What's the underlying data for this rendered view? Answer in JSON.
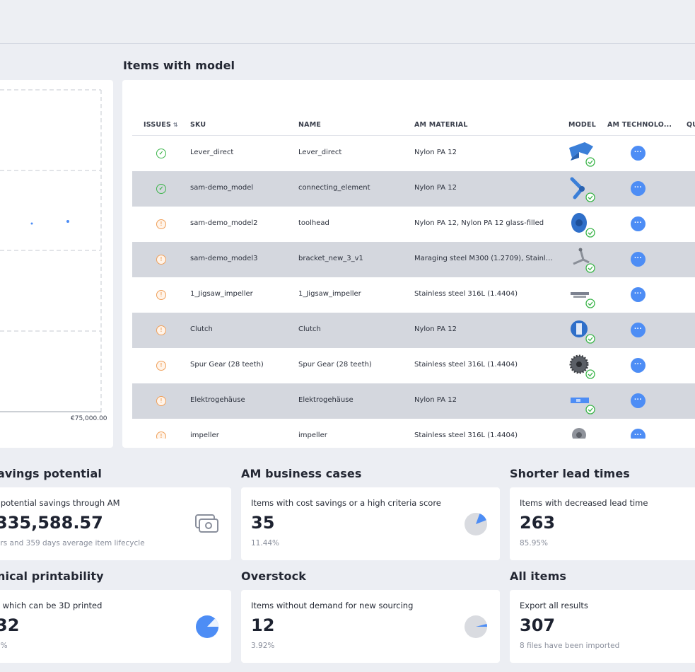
{
  "chart": {
    "x_tick_label": "€75,000.00"
  },
  "items_with_model": {
    "title": "Items with model",
    "columns": {
      "issues": "ISSUES",
      "sku": "SKU",
      "name": "NAME",
      "am_material": "AM MATERIAL",
      "model": "MODEL",
      "am_technology": "AM TECHNOLO...",
      "qu": "QU"
    },
    "rows": [
      {
        "status": "ok",
        "sku": "Lever_direct",
        "name": "Lever_direct",
        "material": "Nylon PA 12"
      },
      {
        "status": "ok",
        "sku": "sam-demo_model",
        "name": "connecting_element",
        "material": "Nylon PA 12"
      },
      {
        "status": "warn",
        "sku": "sam-demo_model2",
        "name": "toolhead",
        "material": "Nylon PA 12, Nylon PA 12 glass-filled"
      },
      {
        "status": "warn",
        "sku": "sam-demo_model3",
        "name": "bracket_new_3_v1",
        "material": "Maraging steel M300 (1.2709), Stainless..."
      },
      {
        "status": "warn",
        "sku": "1_Jigsaw_impeller",
        "name": "1_Jigsaw_impeller",
        "material": "Stainless steel 316L (1.4404)"
      },
      {
        "status": "warn",
        "sku": "Clutch",
        "name": "Clutch",
        "material": "Nylon PA 12"
      },
      {
        "status": "warn",
        "sku": "Spur Gear (28 teeth)",
        "name": "Spur Gear (28 teeth)",
        "material": "Stainless steel 316L (1.4404)"
      },
      {
        "status": "warn",
        "sku": "Elektrogehäuse",
        "name": "Elektrogehäuse",
        "material": "Nylon PA 12"
      },
      {
        "status": "warn",
        "sku": "impeller",
        "name": "impeller",
        "material": "Stainless steel 316L (1.4404)"
      }
    ],
    "more_glyph": "···",
    "ok_glyph": "✓",
    "warn_glyph": "!"
  },
  "savings": {
    "title": "avings potential",
    "label": "l potential savings through AM",
    "value": "335,588.57",
    "sub": "ars and 359 days average item lifecycle"
  },
  "business_cases": {
    "title": "AM business cases",
    "label": "Items with cost savings or a high criteria score",
    "value": "35",
    "sub": "11.44%",
    "fraction": 0.1144
  },
  "lead_times": {
    "title": "Shorter lead times",
    "label": "Items with decreased lead time",
    "value": "263",
    "sub": "85.95%"
  },
  "printability": {
    "title": "nical printability",
    "label": "s which can be 3D printed",
    "value": "32",
    "sub": "6%"
  },
  "overstock": {
    "title": "Overstock",
    "label": "Items without demand for new sourcing",
    "value": "12",
    "sub": "3.92%",
    "fraction": 0.0392
  },
  "all_items": {
    "title": "All items",
    "label": "Export all results",
    "value": "307",
    "sub": "8 files have been imported"
  },
  "colors": {
    "accent": "#4d8df5",
    "ok": "#3bb54a",
    "warn": "#f0a05a",
    "pie_bg": "#d9dbe0"
  }
}
